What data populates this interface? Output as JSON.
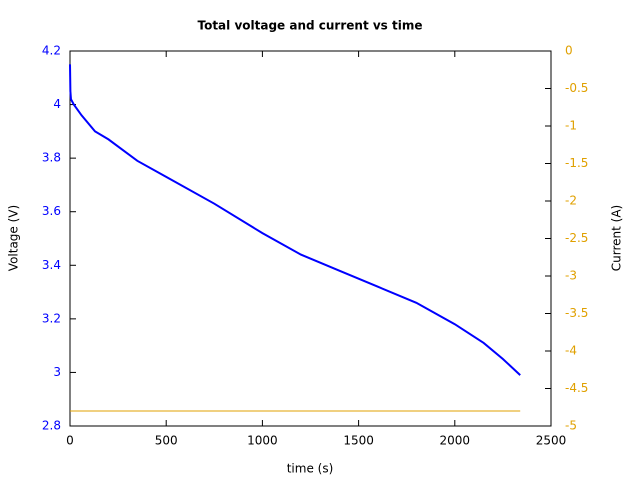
{
  "chart_data": {
    "type": "line",
    "title": "Total voltage and current vs time",
    "x_label": "time (s)",
    "y_label": "Voltage (V)",
    "y2_label": "Current (A)",
    "x": [
      0,
      2,
      5,
      20,
      60,
      130,
      200,
      350,
      500,
      750,
      1000,
      1200,
      1400,
      1600,
      1800,
      2000,
      2150,
      2250,
      2340
    ],
    "series": [
      {
        "name": "Voltage",
        "color": "#0000ff",
        "values": [
          4.15,
          4.05,
          4.02,
          4.0,
          3.96,
          3.9,
          3.87,
          3.79,
          3.73,
          3.63,
          3.52,
          3.44,
          3.38,
          3.32,
          3.26,
          3.18,
          3.11,
          3.05,
          2.99
        ]
      },
      {
        "name": "Current",
        "color": "#e0a000",
        "axis": "y2",
        "values": [
          -4.8,
          -4.8,
          -4.8,
          -4.8,
          -4.8,
          -4.8,
          -4.8,
          -4.8,
          -4.8,
          -4.8,
          -4.8,
          -4.8,
          -4.8,
          -4.8,
          -4.8,
          -4.8,
          -4.8,
          -4.8,
          -4.8
        ]
      }
    ],
    "xlim": [
      0,
      2500
    ],
    "xticks": [
      0,
      500,
      1000,
      1500,
      2000,
      2500
    ],
    "ylim": [
      2.8,
      4.2
    ],
    "yticks": [
      2.8,
      3,
      3.2,
      3.4,
      3.6,
      3.8,
      4,
      4.2
    ],
    "y2lim": [
      -5,
      0
    ],
    "y2ticks": [
      0,
      -0.5,
      -1,
      -1.5,
      -2,
      -2.5,
      -3,
      -3.5,
      -4,
      -4.5,
      -5
    ],
    "grid": false
  }
}
